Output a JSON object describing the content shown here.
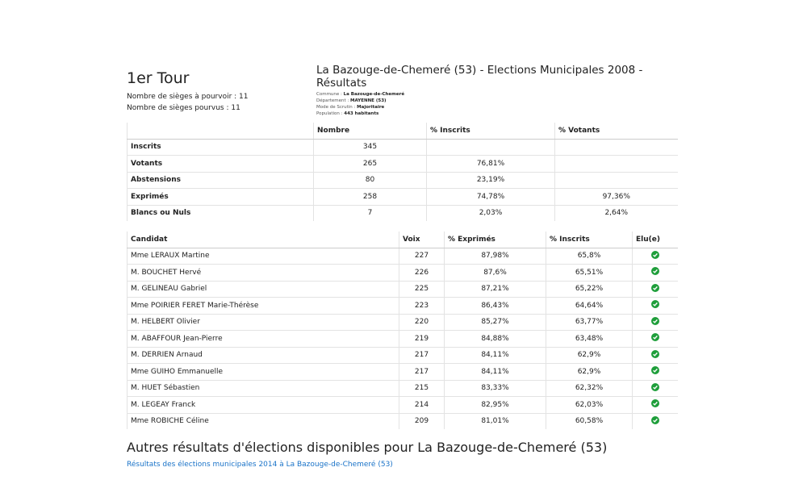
{
  "left": {
    "round": "1er Tour",
    "seats_to_fill": "Nombre de sièges à pourvoir : 11",
    "seats_filled": "Nombre de sièges pourvus : 11"
  },
  "header": {
    "title": "La Bazouge-de-Chemeré (53) - Elections Municipales 2008 - Résultats",
    "info": [
      {
        "label": "Commune :",
        "value": "La Bazouge-de-Chemeré"
      },
      {
        "label": "Département :",
        "value": "MAYENNE (53)"
      },
      {
        "label": "Mode de Scrutin :",
        "value": "Majoritaire"
      },
      {
        "label": "Population :",
        "value": "443 habitants"
      }
    ]
  },
  "summary": {
    "headers": [
      null,
      "Nombre",
      "% Inscrits",
      "% Votants"
    ],
    "rows": [
      [
        "Inscrits",
        "345",
        null,
        null
      ],
      [
        "Votants",
        "265",
        "76,81%",
        null
      ],
      [
        "Abstensions",
        "80",
        "23,19%",
        null
      ],
      [
        "Exprimés",
        "258",
        "74,78%",
        "97,36%"
      ],
      [
        "Blancs ou Nuls",
        "7",
        "2,03%",
        "2,64%"
      ]
    ]
  },
  "candidates": {
    "headers": [
      "Candidat",
      "Voix",
      "% Exprimés",
      "% Inscrits",
      "Elu(e)"
    ],
    "rows": [
      [
        "Mme LERAUX Martine",
        "227",
        "87,98%",
        "65,8%"
      ],
      [
        "M. BOUCHET Hervé",
        "226",
        "87,6%",
        "65,51%"
      ],
      [
        "M. GELINEAU Gabriel",
        "225",
        "87,21%",
        "65,22%"
      ],
      [
        "Mme POIRIER FERET Marie-Thérèse",
        "223",
        "86,43%",
        "64,64%"
      ],
      [
        "M. HELBERT Olivier",
        "220",
        "85,27%",
        "63,77%"
      ],
      [
        "M. ABAFFOUR Jean-Pierre",
        "219",
        "84,88%",
        "63,48%"
      ],
      [
        "M. DERRIEN Arnaud",
        "217",
        "84,11%",
        "62,9%"
      ],
      [
        "Mme GUIHO Emmanuelle",
        "217",
        "84,11%",
        "62,9%"
      ],
      [
        "M. HUET Sébastien",
        "215",
        "83,33%",
        "62,32%"
      ],
      [
        "M. LEGEAY Franck",
        "214",
        "82,95%",
        "62,03%"
      ],
      [
        "Mme ROBICHE Céline",
        "209",
        "81,01%",
        "60,58%"
      ]
    ]
  },
  "footer": {
    "heading": "Autres résultats d'élections disponibles pour La Bazouge-de-Chemeré (53)",
    "link": "Résultats des élections municipales 2014 à La Bazouge-de-Chemeré (53)"
  }
}
